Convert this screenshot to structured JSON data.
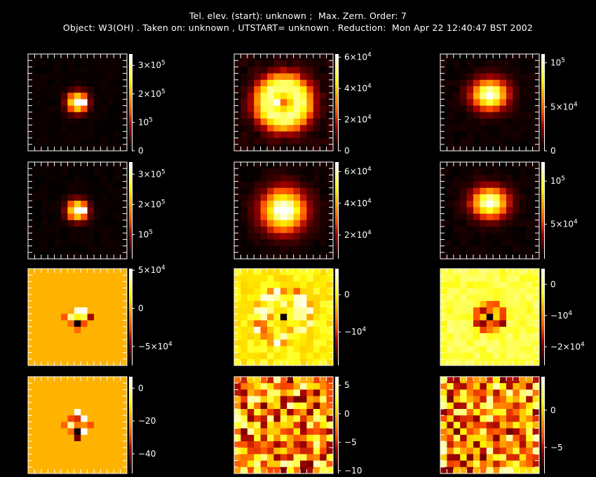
{
  "header": {
    "line1": "Tel. elev. (start): unknown ;  Max. Zern. Order: 7",
    "line2": "Object: W3(OH) . Taken on: unknown , UTSTART= unknown . Reduction:  Mon Apr 22 12:40:47 BST 2002"
  },
  "colors": {
    "background": "#000000",
    "frame": "#ffffff",
    "colormap": "hot (black-red-orange-yellow-white)"
  },
  "chart_data": {
    "type": "heatmap",
    "layout": "4 rows x 3 columns of image panels, each with a vertical colorbar",
    "panels": [
      {
        "row": 0,
        "col": 0,
        "blob": "small-compact",
        "range": [
          0,
          340000
        ],
        "ticks": [
          {
            "v": 0,
            "base": "0"
          },
          {
            "v": 100000,
            "base": "10",
            "exp": "5"
          },
          {
            "v": 200000,
            "base": "2×10",
            "exp": "5"
          },
          {
            "v": 300000,
            "base": "3×10",
            "exp": "5"
          }
        ]
      },
      {
        "row": 0,
        "col": 1,
        "blob": "large-ring",
        "range": [
          0,
          62000
        ],
        "ticks": [
          {
            "v": 0,
            "base": "0"
          },
          {
            "v": 20000,
            "base": "2×10",
            "exp": "4"
          },
          {
            "v": 40000,
            "base": "4×10",
            "exp": "4"
          },
          {
            "v": 60000,
            "base": "6×10",
            "exp": "4"
          }
        ]
      },
      {
        "row": 0,
        "col": 2,
        "blob": "medium",
        "range": [
          0,
          110000
        ],
        "ticks": [
          {
            "v": 0,
            "base": "0"
          },
          {
            "v": 50000,
            "base": "5×10",
            "exp": "4"
          },
          {
            "v": 100000,
            "base": "10",
            "exp": "5"
          }
        ]
      },
      {
        "row": 1,
        "col": 0,
        "blob": "small-compact",
        "range": [
          20000,
          340000
        ],
        "ticks": [
          {
            "v": 100000,
            "base": "10",
            "exp": "5"
          },
          {
            "v": 200000,
            "base": "2×10",
            "exp": "5"
          },
          {
            "v": 300000,
            "base": "3×10",
            "exp": "5"
          }
        ]
      },
      {
        "row": 1,
        "col": 1,
        "blob": "large",
        "range": [
          5000,
          66000
        ],
        "ticks": [
          {
            "v": 20000,
            "base": "2×10",
            "exp": "4"
          },
          {
            "v": 40000,
            "base": "4×10",
            "exp": "4"
          },
          {
            "v": 60000,
            "base": "6×10",
            "exp": "4"
          }
        ]
      },
      {
        "row": 1,
        "col": 2,
        "blob": "medium",
        "range": [
          10000,
          122000
        ],
        "ticks": [
          {
            "v": 50000,
            "base": "5×10",
            "exp": "4"
          },
          {
            "v": 100000,
            "base": "10",
            "exp": "5"
          }
        ]
      },
      {
        "row": 2,
        "col": 0,
        "blob": "residual-small",
        "range": [
          -75000,
          52000
        ],
        "ticks": [
          {
            "v": -50000,
            "base": "−5×10",
            "exp": "4"
          },
          {
            "v": 0,
            "base": "0"
          },
          {
            "v": 50000,
            "base": "5×10",
            "exp": "4"
          }
        ]
      },
      {
        "row": 2,
        "col": 1,
        "blob": "residual-ring",
        "range": [
          -19000,
          7000
        ],
        "ticks": [
          {
            "v": -10000,
            "base": "−10",
            "exp": "4"
          },
          {
            "v": 0,
            "base": "0"
          }
        ]
      },
      {
        "row": 2,
        "col": 2,
        "blob": "residual-medium",
        "range": [
          -26000,
          5000
        ],
        "ticks": [
          {
            "v": -20000,
            "base": "−2×10",
            "exp": "4"
          },
          {
            "v": -10000,
            "base": "−10",
            "exp": "4"
          },
          {
            "v": 0,
            "base": "0"
          }
        ]
      },
      {
        "row": 3,
        "col": 0,
        "blob": "residual-small",
        "range": [
          -52,
          7
        ],
        "ticks": [
          {
            "v": -40,
            "base": "−40"
          },
          {
            "v": -20,
            "base": "−20"
          },
          {
            "v": 0,
            "base": "0"
          }
        ]
      },
      {
        "row": 3,
        "col": 1,
        "blob": "noise",
        "range": [
          -10.5,
          6.5
        ],
        "ticks": [
          {
            "v": -10,
            "base": "−10"
          },
          {
            "v": -5,
            "base": "−5"
          },
          {
            "v": 0,
            "base": "0"
          },
          {
            "v": 5,
            "base": "5"
          }
        ]
      },
      {
        "row": 3,
        "col": 2,
        "blob": "noise",
        "range": [
          -8.5,
          4.5
        ],
        "ticks": [
          {
            "v": -5,
            "base": "−5"
          },
          {
            "v": 0,
            "base": "0"
          }
        ]
      }
    ]
  }
}
